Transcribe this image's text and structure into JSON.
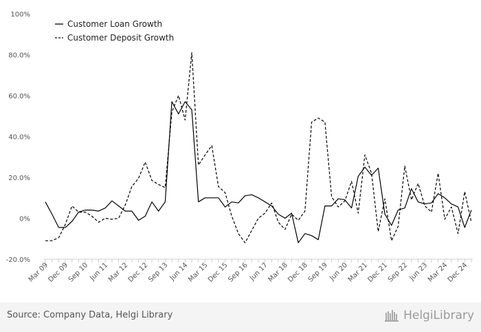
{
  "chart_data": {
    "type": "line",
    "title": "",
    "xlabel": "",
    "ylabel": "",
    "ylim": [
      -20,
      100
    ],
    "yticks": [
      "-20.0%",
      "0%",
      "20.0%",
      "40.0%",
      "60.0%",
      "80.0%",
      "100%"
    ],
    "ytick_values": [
      -20,
      0,
      20,
      40,
      60,
      80,
      100
    ],
    "xtick_labels": [
      "Mar 09",
      "Dec 09",
      "Sep 10",
      "Jun 11",
      "Mar 12",
      "Dec 12",
      "Sep 13",
      "Jun 14",
      "Mar 15",
      "Dec 15",
      "Sep 16",
      "Jun 17",
      "Mar 18",
      "Dec 18",
      "Sep 19",
      "Jun 20",
      "Mar 21",
      "Dec 21",
      "Sep 22",
      "Jun 23",
      "Mar 24",
      "Dec 24"
    ],
    "legend_position": "top-left",
    "grid": false,
    "series": [
      {
        "name": "Customer Loan Growth",
        "style": "solid",
        "color": "#000000",
        "values": [
          8,
          2,
          -4.5,
          -4.5,
          -1.5,
          3,
          4,
          4,
          3.5,
          5,
          8.5,
          6,
          3.5,
          3.5,
          -1,
          1,
          8,
          3.5,
          8,
          57,
          51,
          57,
          53,
          8,
          10,
          10,
          10,
          5.5,
          8,
          7.5,
          11,
          11.5,
          10,
          8,
          6,
          2,
          0,
          2.5,
          -12,
          -7.5,
          -8.5,
          -10.5,
          6,
          6,
          9.5,
          9,
          5,
          20.5,
          25,
          21,
          24.5,
          2,
          -3.5,
          4,
          5,
          14.5,
          8,
          7,
          7.5,
          12,
          10,
          7,
          5.5,
          -4.5,
          4
        ]
      },
      {
        "name": "Customer Deposit Growth",
        "style": "dashed",
        "color": "#000000",
        "values": [
          -11,
          -11,
          -9.5,
          -3,
          6,
          3,
          3,
          1,
          -2,
          0,
          -0.5,
          0,
          6.5,
          15.5,
          19.5,
          27.5,
          18.5,
          16.5,
          15,
          52,
          60,
          48,
          81,
          26,
          31,
          35.5,
          15.5,
          12.5,
          1,
          -7.5,
          -12,
          -6,
          0,
          2.5,
          7.5,
          -2,
          -5.5,
          2,
          -1,
          3.5,
          47,
          49,
          47,
          10.5,
          5.5,
          8.5,
          18,
          2.5,
          31,
          22,
          -6.5,
          9.5,
          -11,
          -4,
          25.5,
          9,
          17,
          6,
          3,
          22,
          -0.5,
          5.5,
          -7.5,
          13,
          -2
        ]
      }
    ]
  },
  "footer": {
    "source_text": "Source: Company Data, Helgi Library",
    "brand_text": "HelgiLibrary"
  }
}
